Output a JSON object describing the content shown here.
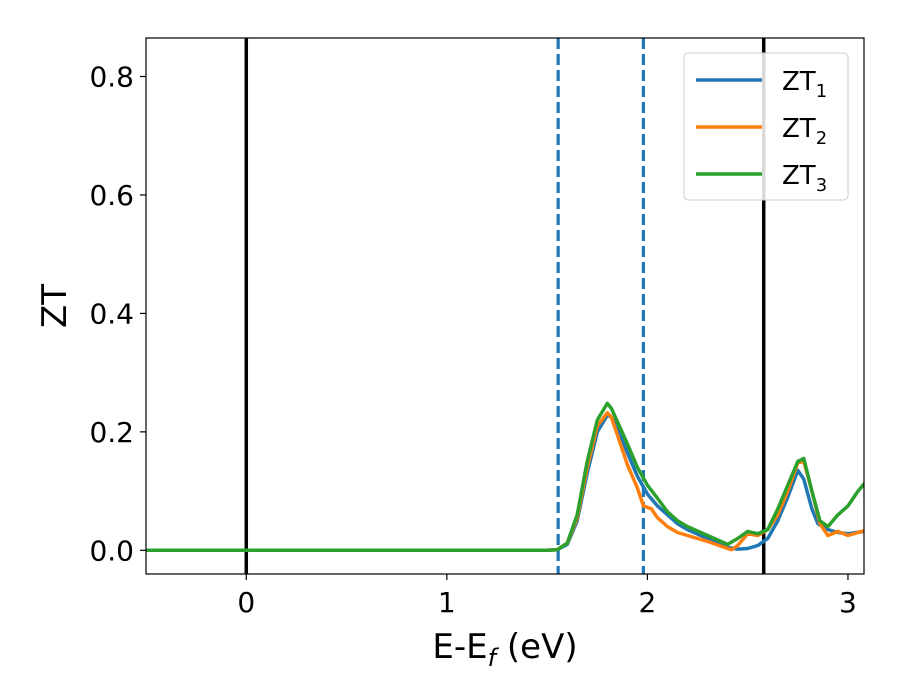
{
  "chart_data": {
    "type": "line",
    "xlabel": "E-E",
    "xlabel_sub": "f",
    "xlabel_unit": " (eV)",
    "ylabel": "ZT",
    "xlim": [
      -0.5,
      3.08
    ],
    "ylim": [
      -0.04,
      0.865
    ],
    "xticks": [
      0,
      1,
      2,
      3
    ],
    "xtick_labels": [
      "0",
      "1",
      "2",
      "3"
    ],
    "yticks": [
      0.0,
      0.2,
      0.4,
      0.6,
      0.8
    ],
    "ytick_labels": [
      "0.0",
      "0.2",
      "0.4",
      "0.6",
      "0.8"
    ],
    "grid": false,
    "legend_position": "top-right",
    "vlines": [
      {
        "x": 0.0,
        "style": "solid",
        "color": "#000000"
      },
      {
        "x": 2.58,
        "style": "solid",
        "color": "#000000"
      },
      {
        "x": 1.555,
        "style": "dashed",
        "color": "#1f77b4"
      },
      {
        "x": 1.98,
        "style": "dashed",
        "color": "#1f77b4"
      }
    ],
    "series": [
      {
        "name": "ZT",
        "name_sub": "1",
        "color": "#1f77b4",
        "x": [
          -0.5,
          1.5,
          1.55,
          1.6,
          1.65,
          1.7,
          1.75,
          1.8,
          1.82,
          1.86,
          1.9,
          1.95,
          2.0,
          2.05,
          2.1,
          2.15,
          2.2,
          2.3,
          2.4,
          2.45,
          2.5,
          2.55,
          2.6,
          2.65,
          2.7,
          2.75,
          2.78,
          2.82,
          2.85,
          2.9,
          2.95,
          3.0,
          3.08
        ],
        "y": [
          0.0,
          0.0,
          0.001,
          0.01,
          0.05,
          0.13,
          0.2,
          0.228,
          0.225,
          0.2,
          0.165,
          0.125,
          0.095,
          0.075,
          0.06,
          0.045,
          0.035,
          0.02,
          0.005,
          0.002,
          0.003,
          0.008,
          0.02,
          0.05,
          0.09,
          0.135,
          0.12,
          0.07,
          0.045,
          0.035,
          0.03,
          0.028,
          0.032
        ]
      },
      {
        "name": "ZT",
        "name_sub": "2",
        "color": "#ff7f0e",
        "x": [
          -0.5,
          1.5,
          1.55,
          1.6,
          1.65,
          1.7,
          1.75,
          1.8,
          1.82,
          1.86,
          1.9,
          1.95,
          1.98,
          2.02,
          2.05,
          2.1,
          2.15,
          2.2,
          2.3,
          2.4,
          2.42,
          2.45,
          2.5,
          2.55,
          2.6,
          2.65,
          2.7,
          2.75,
          2.78,
          2.82,
          2.86,
          2.9,
          2.95,
          3.0,
          3.08
        ],
        "y": [
          0.0,
          0.0,
          0.001,
          0.012,
          0.055,
          0.14,
          0.21,
          0.232,
          0.225,
          0.185,
          0.145,
          0.105,
          0.075,
          0.07,
          0.055,
          0.04,
          0.03,
          0.025,
          0.015,
          0.003,
          0.001,
          0.008,
          0.028,
          0.025,
          0.035,
          0.06,
          0.1,
          0.148,
          0.15,
          0.1,
          0.045,
          0.025,
          0.032,
          0.025,
          0.033
        ]
      },
      {
        "name": "ZT",
        "name_sub": "3",
        "color": "#2ca02c",
        "x": [
          -0.5,
          1.5,
          1.55,
          1.6,
          1.65,
          1.7,
          1.75,
          1.8,
          1.82,
          1.86,
          1.9,
          1.95,
          2.0,
          2.05,
          2.1,
          2.15,
          2.2,
          2.3,
          2.4,
          2.45,
          2.5,
          2.55,
          2.6,
          2.65,
          2.7,
          2.75,
          2.78,
          2.82,
          2.86,
          2.9,
          2.95,
          3.0,
          3.05,
          3.08
        ],
        "y": [
          0.0,
          0.0,
          0.001,
          0.012,
          0.06,
          0.15,
          0.22,
          0.248,
          0.24,
          0.21,
          0.18,
          0.14,
          0.11,
          0.088,
          0.065,
          0.05,
          0.04,
          0.025,
          0.01,
          0.02,
          0.032,
          0.028,
          0.035,
          0.07,
          0.11,
          0.15,
          0.155,
          0.1,
          0.05,
          0.04,
          0.06,
          0.075,
          0.1,
          0.112
        ]
      }
    ]
  }
}
